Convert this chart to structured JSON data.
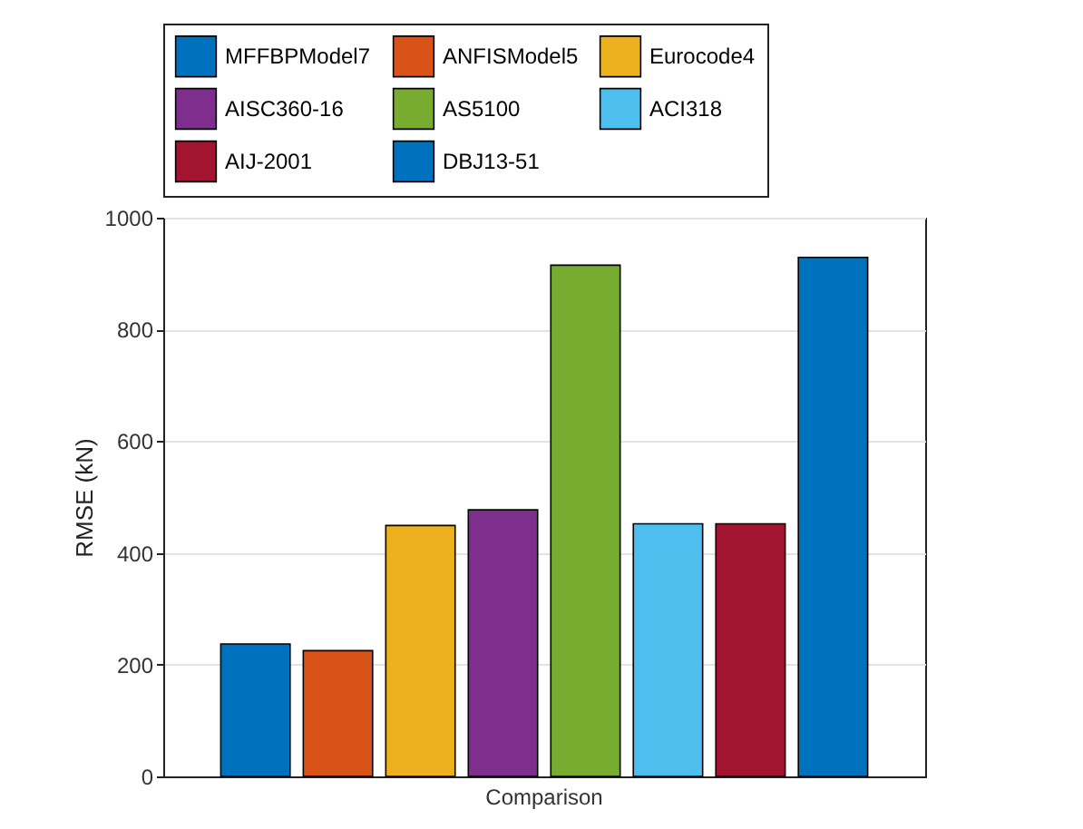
{
  "chart_data": {
    "type": "bar",
    "ylabel": "RMSE (kN)",
    "categories": [
      "Comparison"
    ],
    "series": [
      {
        "name": "MFFBPModel7",
        "color": "#0072bd",
        "values": [
          237
        ]
      },
      {
        "name": "ANFISModel5",
        "color": "#d95319",
        "values": [
          225
        ]
      },
      {
        "name": "Eurocode4",
        "color": "#edb120",
        "values": [
          449
        ]
      },
      {
        "name": "AISC360-16",
        "color": "#7e2f8e",
        "values": [
          477
        ]
      },
      {
        "name": "AS5100",
        "color": "#77ac30",
        "values": [
          915
        ]
      },
      {
        "name": "ACI318",
        "color": "#4dbeee",
        "values": [
          452
        ]
      },
      {
        "name": "AIJ-2001",
        "color": "#a2142f",
        "values": [
          452
        ]
      },
      {
        "name": "DBJ13-51",
        "color": "#0072bd",
        "values": [
          929
        ]
      }
    ],
    "ylim": [
      0,
      1000
    ],
    "yticks": [
      0,
      200,
      400,
      600,
      800,
      1000
    ],
    "grid": "y",
    "legend": "top"
  }
}
